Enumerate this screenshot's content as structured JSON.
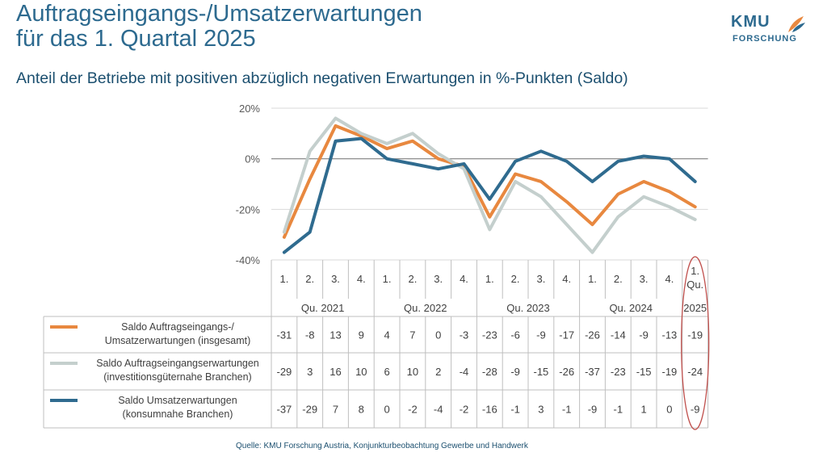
{
  "header": {
    "title_line1": "Auftragseingangs-/Umsatzerwartungen",
    "title_line2": "für das 1. Quartal 2025",
    "subtitle": "Anteil der Betriebe mit positiven abzüglich negativen Erwartungen in %-Punkten (Saldo)"
  },
  "logo": {
    "text": "KMU",
    "sub": "FORSCHUNG"
  },
  "source": "Quelle: KMU Forschung Austria, Konjunkturbeobachtung Gewerbe und Handwerk",
  "chart_data": {
    "type": "line",
    "ylim": [
      -40,
      20
    ],
    "yticks": [
      "20%",
      "0%",
      "-20%",
      "-40%"
    ],
    "yticks_values": [
      20,
      0,
      -20,
      -40
    ],
    "quarter_labels": [
      "1.",
      "2.",
      "3.",
      "4.",
      "1.",
      "2.",
      "3.",
      "4.",
      "1.",
      "2.",
      "3.",
      "4.",
      "1.",
      "2.",
      "3.",
      "4.",
      "1. Qu."
    ],
    "year_groups": [
      {
        "label": "Qu. 2021",
        "from": 0,
        "to": 3
      },
      {
        "label": "Qu. 2022",
        "from": 4,
        "to": 7
      },
      {
        "label": "Qu. 2023",
        "from": 8,
        "to": 11
      },
      {
        "label": "Qu. 2024",
        "from": 12,
        "to": 15
      },
      {
        "label": "2025",
        "from": 16,
        "to": 16
      }
    ],
    "series": [
      {
        "name_line1": "Saldo Auftragseingangs-/",
        "name_line2": "Umsatzerwartungen (insgesamt)",
        "color": "#e8883f",
        "values": [
          -31,
          -8,
          13,
          9,
          4,
          7,
          0,
          -3,
          -23,
          -6,
          -9,
          -17,
          -26,
          -14,
          -9,
          -13,
          -19
        ]
      },
      {
        "name_line1": "Saldo Auftragseingangserwartungen",
        "name_line2": "(investitionsgüternahe Branchen)",
        "color": "#c4cfcd",
        "values": [
          -29,
          3,
          16,
          10,
          6,
          10,
          2,
          -4,
          -28,
          -9,
          -15,
          -26,
          -37,
          -23,
          -15,
          -19,
          -24
        ]
      },
      {
        "name_line1": "Saldo Umsatzerwartungen",
        "name_line2": "(konsumnahe Branchen)",
        "color": "#2f6b8f",
        "values": [
          -37,
          -29,
          7,
          8,
          0,
          -2,
          -4,
          -2,
          -16,
          -1,
          3,
          -1,
          -9,
          -1,
          1,
          0,
          -9
        ]
      }
    ],
    "highlight_color": "#c0504d"
  }
}
